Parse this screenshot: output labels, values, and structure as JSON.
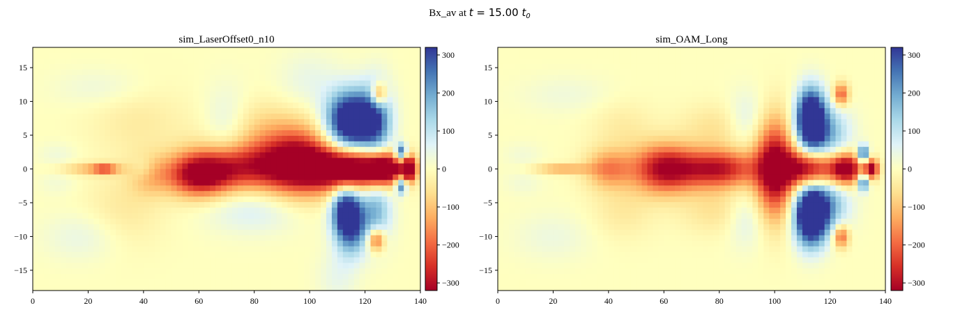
{
  "figure": {
    "suptitle_prefix": "Bx_av at ",
    "suptitle_math_var": "t",
    "suptitle_math_value": " = 15.00 ",
    "suptitle_math_unit": "t",
    "suptitle_math_unit_sub": "0"
  },
  "chart_data": [
    {
      "type": "heatmap",
      "title": "sim_LaserOffset0_n10",
      "colormap": "RdYlBu (red = negative, blue = positive)",
      "xlim": [
        0,
        140
      ],
      "ylim": [
        -18,
        18
      ],
      "x_ticks": [
        0,
        20,
        40,
        60,
        80,
        100,
        120,
        140
      ],
      "y_ticks": [
        -15,
        -10,
        -5,
        0,
        5,
        10,
        15
      ],
      "clim": [
        -320,
        320
      ],
      "colorbar_ticks": [
        -300,
        -200,
        -100,
        0,
        100,
        200,
        300
      ],
      "features": [
        {
          "x": 9,
          "y": 2.1,
          "sx": 5,
          "sy": 1.3,
          "value": 30
        },
        {
          "x": 9,
          "y": -2.1,
          "sx": 5,
          "sy": 1.3,
          "value": 25
        },
        {
          "x": 21,
          "y": 0,
          "sx": 8,
          "sy": 0.6,
          "value": -110
        },
        {
          "x": 26,
          "y": 0,
          "sx": 3,
          "sy": 0.5,
          "value": -160
        },
        {
          "x": 42,
          "y": -1,
          "sx": 5,
          "sy": 2,
          "value": -90
        },
        {
          "x": 40,
          "y": 0,
          "sx": 3,
          "sy": 1.2,
          "value": 60
        },
        {
          "x": 60,
          "y": -1,
          "sx": 8,
          "sy": 2.2,
          "value": -280
        },
        {
          "x": 76,
          "y": 0.3,
          "sx": 14,
          "sy": 2.5,
          "value": -260
        },
        {
          "x": 96,
          "y": 1,
          "sx": 9,
          "sy": 3.5,
          "value": -300
        },
        {
          "x": 115,
          "y": 0,
          "sx": 10,
          "sy": 2.2,
          "value": -420
        },
        {
          "x": 127,
          "y": 0,
          "sx": 5,
          "sy": 1.6,
          "value": -320
        },
        {
          "x": 136,
          "y": 0,
          "sx": 1.8,
          "sy": 1.2,
          "value": -380
        },
        {
          "x": 80,
          "y": 6,
          "sx": 12,
          "sy": 3,
          "value": -70
        },
        {
          "x": 70,
          "y": 6,
          "sx": 6,
          "sy": 4,
          "value": 80
        },
        {
          "x": 80,
          "y": -6,
          "sx": 12,
          "sy": 2.5,
          "value": 70
        },
        {
          "x": 115,
          "y": 7,
          "sx": 6,
          "sy": 3,
          "value": 480
        },
        {
          "x": 124,
          "y": 7,
          "sx": 4,
          "sy": 4,
          "value": 220
        },
        {
          "x": 133,
          "y": 2.5,
          "sx": 1.4,
          "sy": 0.9,
          "value": 320
        },
        {
          "x": 113,
          "y": -6,
          "sx": 3.5,
          "sy": 2.5,
          "value": 300
        },
        {
          "x": 115,
          "y": -8.5,
          "sx": 4,
          "sy": 3,
          "value": 260
        },
        {
          "x": 124,
          "y": -6,
          "sx": 4,
          "sy": 3.5,
          "value": 170
        },
        {
          "x": 133,
          "y": -2.5,
          "sx": 1.4,
          "sy": 0.9,
          "value": 300
        },
        {
          "x": 125,
          "y": 11,
          "sx": 2,
          "sy": 1.2,
          "value": -250
        },
        {
          "x": 124,
          "y": -10.5,
          "sx": 2.2,
          "sy": 1.2,
          "value": -250
        },
        {
          "x": 18,
          "y": -10,
          "sx": 10,
          "sy": 2.5,
          "value": 45
        },
        {
          "x": 25,
          "y": 12,
          "sx": 12,
          "sy": 2,
          "value": 35
        },
        {
          "x": 110,
          "y": -16,
          "sx": 5,
          "sy": 3,
          "value": 45
        },
        {
          "x": 33,
          "y": -6,
          "sx": 10,
          "sy": 4,
          "value": -45
        },
        {
          "x": 38,
          "y": 7,
          "sx": 12,
          "sy": 4,
          "value": -40
        },
        {
          "x": 100,
          "y": 13,
          "sx": 8,
          "sy": 3,
          "value": 45
        }
      ]
    },
    {
      "type": "heatmap",
      "title": "sim_OAM_Long",
      "colormap": "RdYlBu (red = negative, blue = positive)",
      "xlim": [
        0,
        140
      ],
      "ylim": [
        -18,
        18
      ],
      "x_ticks": [
        0,
        20,
        40,
        60,
        80,
        100,
        120,
        140
      ],
      "y_ticks": [
        -15,
        -10,
        -5,
        0,
        5,
        10,
        15
      ],
      "clim": [
        -320,
        320
      ],
      "colorbar_ticks": [
        -300,
        -200,
        -100,
        0,
        100,
        200,
        300
      ],
      "features": [
        {
          "x": 9,
          "y": 2.1,
          "sx": 5,
          "sy": 1.3,
          "value": 25
        },
        {
          "x": 9,
          "y": -2.1,
          "sx": 5,
          "sy": 1.3,
          "value": 25
        },
        {
          "x": 23,
          "y": 0,
          "sx": 7,
          "sy": 0.5,
          "value": -140
        },
        {
          "x": 40,
          "y": 0,
          "sx": 6,
          "sy": 2,
          "value": -160
        },
        {
          "x": 60,
          "y": 0,
          "sx": 8,
          "sy": 2.5,
          "value": -300
        },
        {
          "x": 80,
          "y": 0,
          "sx": 10,
          "sy": 2,
          "value": -290
        },
        {
          "x": 100,
          "y": 0,
          "sx": 5,
          "sy": 5,
          "value": -340
        },
        {
          "x": 113,
          "y": 0,
          "sx": 7,
          "sy": 2,
          "value": -380
        },
        {
          "x": 126,
          "y": 0,
          "sx": 4,
          "sy": 1.6,
          "value": -360
        },
        {
          "x": 135,
          "y": 0,
          "sx": 1.8,
          "sy": 1,
          "value": -340
        },
        {
          "x": 80,
          "y": 6,
          "sx": 10,
          "sy": 2.5,
          "value": -60
        },
        {
          "x": 80,
          "y": -6,
          "sx": 10,
          "sy": 2.5,
          "value": -60
        },
        {
          "x": 90,
          "y": 7,
          "sx": 5,
          "sy": 3,
          "value": 80
        },
        {
          "x": 90,
          "y": -7,
          "sx": 5,
          "sy": 3,
          "value": 80
        },
        {
          "x": 113,
          "y": 7.5,
          "sx": 3.5,
          "sy": 3,
          "value": 480
        },
        {
          "x": 118,
          "y": 5,
          "sx": 6,
          "sy": 3,
          "value": 200
        },
        {
          "x": 113,
          "y": -7,
          "sx": 4,
          "sy": 3,
          "value": 480
        },
        {
          "x": 118,
          "y": -5,
          "sx": 6,
          "sy": 3,
          "value": 200
        },
        {
          "x": 132,
          "y": 2.2,
          "sx": 1.4,
          "sy": 0.9,
          "value": 320
        },
        {
          "x": 132,
          "y": -2,
          "sx": 1.4,
          "sy": 0.9,
          "value": 300
        },
        {
          "x": 124,
          "y": 11,
          "sx": 2,
          "sy": 1.2,
          "value": -220
        },
        {
          "x": 124,
          "y": -10,
          "sx": 2,
          "sy": 1.2,
          "value": -220
        },
        {
          "x": 20,
          "y": -10,
          "sx": 10,
          "sy": 2.5,
          "value": 35
        },
        {
          "x": 25,
          "y": 11,
          "sx": 12,
          "sy": 2,
          "value": 30
        },
        {
          "x": 45,
          "y": -6,
          "sx": 8,
          "sy": 3,
          "value": -45
        },
        {
          "x": 45,
          "y": 6,
          "sx": 8,
          "sy": 3,
          "value": -40
        }
      ]
    }
  ]
}
